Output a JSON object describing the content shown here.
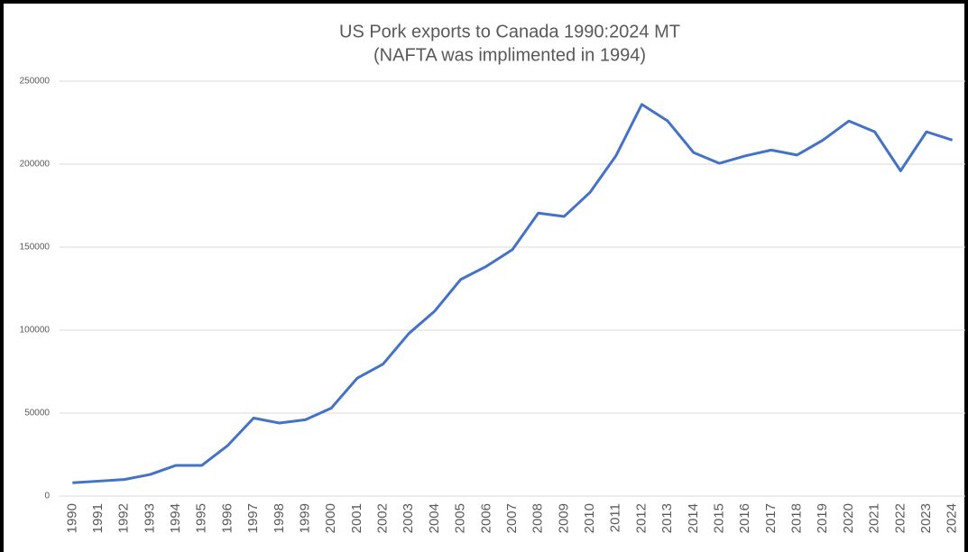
{
  "chart_data": {
    "type": "line",
    "title": [
      "US Pork exports to Canada 1990:2024 MT",
      "(NAFTA was implimented in 1994)"
    ],
    "categories": [
      "1990",
      "1991",
      "1992",
      "1993",
      "1994",
      "1995",
      "1996",
      "1997",
      "1998",
      "1999",
      "2000",
      "2001",
      "2002",
      "2003",
      "2004",
      "2005",
      "2006",
      "2007",
      "2008",
      "2009",
      "2010",
      "2011",
      "2012",
      "2013",
      "2014",
      "2015",
      "2016",
      "2017",
      "2018",
      "2019",
      "2020",
      "2021",
      "2022",
      "2023",
      "2024"
    ],
    "series": [
      {
        "name": "US Pork exports to Canada",
        "color": "#4472c4",
        "values": [
          8000,
          9000,
          10000,
          13000,
          18500,
          18500,
          30500,
          47000,
          44000,
          46000,
          53000,
          71000,
          79500,
          98000,
          111500,
          130500,
          138500,
          148500,
          170500,
          168500,
          183000,
          205000,
          236000,
          226000,
          207000,
          200500,
          205000,
          208500,
          205500,
          214500,
          226000,
          219500,
          196000,
          219500,
          214500
        ]
      }
    ],
    "ylim": [
      0,
      250000
    ],
    "yticks": [
      0,
      50000,
      100000,
      150000,
      200000,
      250000
    ],
    "grid": true
  }
}
